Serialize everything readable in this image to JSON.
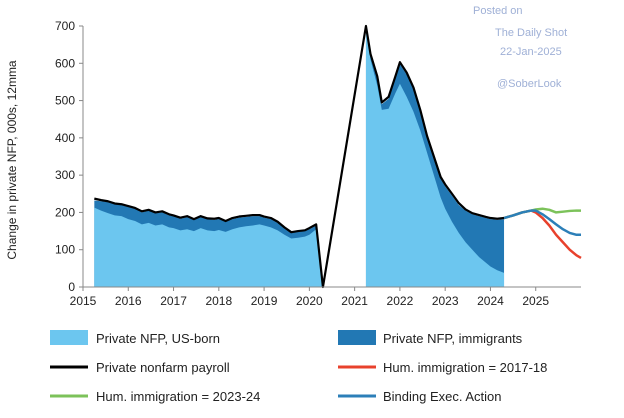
{
  "watermark": {
    "posted": "Posted on",
    "source": "The Daily Shot",
    "date": "22-Jan-2025",
    "handle": "@SoberLook"
  },
  "chart_data": {
    "type": "area",
    "ylabel": "Change in private NFP, 000s, 12mma",
    "xlim": [
      2015.0,
      2026.0
    ],
    "ylim": [
      0,
      700
    ],
    "yticks": [
      0,
      100,
      200,
      300,
      400,
      500,
      600,
      700
    ],
    "xticks": [
      2015,
      2016,
      2017,
      2018,
      2019,
      2020,
      2021,
      2022,
      2023,
      2024,
      2025
    ],
    "legend_position": "bottom",
    "colors": {
      "us_born": "#6cc6ef",
      "immigrants": "#2278b4",
      "total": "#000000",
      "hum_2017_18": "#e8412c",
      "hum_2023_24": "#7cc25a",
      "binding_exec": "#2c7fb8"
    },
    "series": [
      {
        "name": "Private NFP, US-born",
        "kind": "area",
        "points": [
          [
            2015.25,
            213
          ],
          [
            2015.4,
            205
          ],
          [
            2015.55,
            198
          ],
          [
            2015.7,
            192
          ],
          [
            2015.85,
            190
          ],
          [
            2016.0,
            182
          ],
          [
            2016.15,
            177
          ],
          [
            2016.3,
            168
          ],
          [
            2016.45,
            172
          ],
          [
            2016.6,
            165
          ],
          [
            2016.75,
            168
          ],
          [
            2016.9,
            160
          ],
          [
            2017.0,
            158
          ],
          [
            2017.15,
            152
          ],
          [
            2017.3,
            155
          ],
          [
            2017.45,
            150
          ],
          [
            2017.6,
            158
          ],
          [
            2017.75,
            152
          ],
          [
            2017.9,
            150
          ],
          [
            2018.0,
            153
          ],
          [
            2018.15,
            148
          ],
          [
            2018.3,
            155
          ],
          [
            2018.45,
            160
          ],
          [
            2018.6,
            163
          ],
          [
            2018.75,
            165
          ],
          [
            2018.9,
            168
          ],
          [
            2019.0,
            165
          ],
          [
            2019.15,
            160
          ],
          [
            2019.3,
            152
          ],
          [
            2019.45,
            140
          ],
          [
            2019.6,
            130
          ],
          [
            2019.75,
            132
          ],
          [
            2019.9,
            135
          ],
          [
            2020.0,
            140
          ],
          [
            2020.15,
            155
          ],
          [
            2020.3,
            0
          ],
          [
            2021.25,
            700
          ],
          [
            2021.35,
            610
          ],
          [
            2021.5,
            540
          ],
          [
            2021.6,
            475
          ],
          [
            2021.75,
            478
          ],
          [
            2021.9,
            520
          ],
          [
            2022.0,
            545
          ],
          [
            2022.15,
            510
          ],
          [
            2022.3,
            470
          ],
          [
            2022.45,
            420
          ],
          [
            2022.6,
            360
          ],
          [
            2022.75,
            300
          ],
          [
            2022.9,
            240
          ],
          [
            2023.0,
            210
          ],
          [
            2023.15,
            175
          ],
          [
            2023.3,
            145
          ],
          [
            2023.45,
            120
          ],
          [
            2023.6,
            100
          ],
          [
            2023.75,
            80
          ],
          [
            2023.9,
            65
          ],
          [
            2024.0,
            55
          ],
          [
            2024.15,
            45
          ],
          [
            2024.3,
            38
          ]
        ]
      },
      {
        "name": "Private NFP, immigrants",
        "kind": "area",
        "points": [
          [
            2015.25,
            232
          ],
          [
            2015.4,
            230
          ],
          [
            2015.55,
            228
          ],
          [
            2015.7,
            222
          ],
          [
            2015.85,
            220
          ],
          [
            2016.0,
            215
          ],
          [
            2016.15,
            210
          ],
          [
            2016.3,
            200
          ],
          [
            2016.45,
            205
          ],
          [
            2016.6,
            198
          ],
          [
            2016.75,
            200
          ],
          [
            2016.9,
            192
          ],
          [
            2017.0,
            190
          ],
          [
            2017.15,
            183
          ],
          [
            2017.3,
            187
          ],
          [
            2017.45,
            180
          ],
          [
            2017.6,
            188
          ],
          [
            2017.75,
            182
          ],
          [
            2017.9,
            180
          ],
          [
            2018.0,
            182
          ],
          [
            2018.15,
            175
          ],
          [
            2018.3,
            182
          ],
          [
            2018.45,
            186
          ],
          [
            2018.6,
            188
          ],
          [
            2018.75,
            190
          ],
          [
            2018.9,
            190
          ],
          [
            2019.0,
            186
          ],
          [
            2019.15,
            182
          ],
          [
            2019.3,
            172
          ],
          [
            2019.45,
            158
          ],
          [
            2019.6,
            145
          ],
          [
            2019.75,
            148
          ],
          [
            2019.9,
            150
          ],
          [
            2020.0,
            155
          ],
          [
            2020.15,
            165
          ],
          [
            2020.3,
            0
          ],
          [
            2021.25,
            700
          ],
          [
            2021.35,
            620
          ],
          [
            2021.5,
            560
          ],
          [
            2021.6,
            490
          ],
          [
            2021.75,
            505
          ],
          [
            2021.9,
            560
          ],
          [
            2022.0,
            598
          ],
          [
            2022.15,
            570
          ],
          [
            2022.3,
            530
          ],
          [
            2022.45,
            470
          ],
          [
            2022.6,
            400
          ],
          [
            2022.75,
            345
          ],
          [
            2022.9,
            290
          ],
          [
            2023.0,
            270
          ],
          [
            2023.15,
            245
          ],
          [
            2023.3,
            220
          ],
          [
            2023.45,
            205
          ],
          [
            2023.6,
            195
          ],
          [
            2023.75,
            190
          ],
          [
            2023.9,
            185
          ],
          [
            2024.0,
            182
          ],
          [
            2024.15,
            180
          ],
          [
            2024.3,
            182
          ]
        ]
      },
      {
        "name": "Private nonfarm payroll",
        "kind": "line",
        "points": [
          [
            2015.25,
            237
          ],
          [
            2015.4,
            233
          ],
          [
            2015.55,
            230
          ],
          [
            2015.7,
            224
          ],
          [
            2015.85,
            222
          ],
          [
            2016.0,
            217
          ],
          [
            2016.15,
            212
          ],
          [
            2016.3,
            203
          ],
          [
            2016.45,
            207
          ],
          [
            2016.6,
            200
          ],
          [
            2016.75,
            203
          ],
          [
            2016.9,
            195
          ],
          [
            2017.0,
            192
          ],
          [
            2017.15,
            186
          ],
          [
            2017.3,
            190
          ],
          [
            2017.45,
            182
          ],
          [
            2017.6,
            190
          ],
          [
            2017.75,
            184
          ],
          [
            2017.9,
            183
          ],
          [
            2018.0,
            185
          ],
          [
            2018.15,
            177
          ],
          [
            2018.3,
            185
          ],
          [
            2018.45,
            189
          ],
          [
            2018.6,
            191
          ],
          [
            2018.75,
            193
          ],
          [
            2018.9,
            193
          ],
          [
            2019.0,
            189
          ],
          [
            2019.15,
            185
          ],
          [
            2019.3,
            175
          ],
          [
            2019.45,
            160
          ],
          [
            2019.6,
            147
          ],
          [
            2019.75,
            150
          ],
          [
            2019.9,
            152
          ],
          [
            2020.0,
            158
          ],
          [
            2020.15,
            168
          ],
          [
            2020.3,
            0
          ],
          [
            2021.25,
            700
          ],
          [
            2021.35,
            625
          ],
          [
            2021.5,
            565
          ],
          [
            2021.6,
            495
          ],
          [
            2021.75,
            510
          ],
          [
            2021.9,
            565
          ],
          [
            2022.0,
            603
          ],
          [
            2022.15,
            575
          ],
          [
            2022.3,
            535
          ],
          [
            2022.45,
            475
          ],
          [
            2022.6,
            405
          ],
          [
            2022.75,
            350
          ],
          [
            2022.9,
            295
          ],
          [
            2023.0,
            275
          ],
          [
            2023.15,
            250
          ],
          [
            2023.3,
            225
          ],
          [
            2023.45,
            208
          ],
          [
            2023.6,
            198
          ],
          [
            2023.75,
            193
          ],
          [
            2023.9,
            188
          ],
          [
            2024.0,
            185
          ],
          [
            2024.15,
            183
          ],
          [
            2024.3,
            185
          ]
        ]
      },
      {
        "name": "Hum. immigration = 2017-18",
        "kind": "line",
        "points": [
          [
            2024.3,
            185
          ],
          [
            2024.5,
            192
          ],
          [
            2024.7,
            200
          ],
          [
            2024.9,
            205
          ],
          [
            2025.0,
            200
          ],
          [
            2025.15,
            185
          ],
          [
            2025.3,
            165
          ],
          [
            2025.45,
            140
          ],
          [
            2025.6,
            120
          ],
          [
            2025.75,
            100
          ],
          [
            2025.9,
            85
          ],
          [
            2026.0,
            78
          ]
        ]
      },
      {
        "name": "Hum. immigration = 2023-24",
        "kind": "line",
        "points": [
          [
            2024.3,
            185
          ],
          [
            2024.5,
            192
          ],
          [
            2024.7,
            200
          ],
          [
            2024.9,
            205
          ],
          [
            2025.0,
            208
          ],
          [
            2025.15,
            210
          ],
          [
            2025.3,
            207
          ],
          [
            2025.45,
            200
          ],
          [
            2025.6,
            202
          ],
          [
            2025.75,
            204
          ],
          [
            2025.9,
            205
          ],
          [
            2026.0,
            205
          ]
        ]
      },
      {
        "name": "Binding Exec. Action",
        "kind": "line",
        "points": [
          [
            2024.3,
            185
          ],
          [
            2024.5,
            192
          ],
          [
            2024.7,
            200
          ],
          [
            2024.9,
            205
          ],
          [
            2025.0,
            205
          ],
          [
            2025.15,
            195
          ],
          [
            2025.3,
            182
          ],
          [
            2025.45,
            168
          ],
          [
            2025.6,
            155
          ],
          [
            2025.75,
            145
          ],
          [
            2025.9,
            140
          ],
          [
            2026.0,
            140
          ]
        ]
      }
    ]
  }
}
